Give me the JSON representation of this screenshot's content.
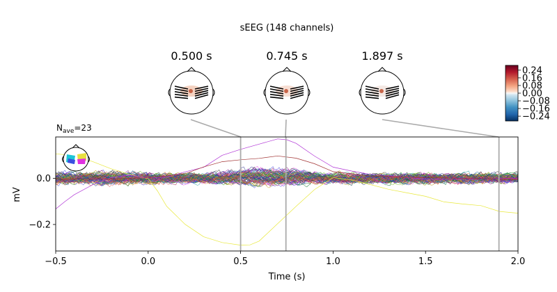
{
  "chart_data": {
    "type": "line",
    "title": "sEEG (148 channels)",
    "nave_label": "N",
    "nave_sub": "ave",
    "nave_value": "=23",
    "xlabel": "Time (s)",
    "ylabel": "mV",
    "xlim": [
      -0.5,
      2.0
    ],
    "ylim": [
      -0.315,
      0.18
    ],
    "xticks": [
      -0.5,
      0.0,
      0.5,
      1.0,
      1.5,
      2.0
    ],
    "xtick_labels": [
      "−0.5",
      "0.0",
      "0.5",
      "1.0",
      "1.5",
      "2.0"
    ],
    "yticks": [
      0.0,
      -0.2
    ],
    "ytick_labels": [
      "0.0",
      "−0.2"
    ],
    "topomap_times": [
      0.5,
      0.745,
      1.897
    ],
    "topomap_labels": [
      "0.500 s",
      "0.745 s",
      "1.897 s"
    ],
    "colorbar_ticks": [
      0.24,
      0.16,
      0.08,
      0.0,
      -0.08,
      -0.16,
      -0.24
    ],
    "colorbar_labels": [
      "0.24",
      "0.16",
      "0.08",
      "0.00",
      "−0.08",
      "−0.16",
      "−0.24"
    ],
    "colorbar_range": [
      -0.29,
      0.29
    ],
    "channel_count": 148,
    "highlight_series": [
      {
        "name": "yellow channel",
        "color": "#e8e83a",
        "x": [
          -0.5,
          -0.4,
          -0.3,
          -0.2,
          -0.1,
          0.0,
          0.05,
          0.1,
          0.2,
          0.3,
          0.4,
          0.5,
          0.55,
          0.6,
          0.7,
          0.8,
          0.9,
          1.0,
          1.1,
          1.2,
          1.3,
          1.4,
          1.5,
          1.6,
          1.7,
          1.8,
          1.9,
          2.0
        ],
        "y": [
          0.11,
          0.1,
          0.07,
          0.04,
          0.02,
          0.0,
          -0.05,
          -0.12,
          -0.2,
          -0.25,
          -0.28,
          -0.29,
          -0.285,
          -0.27,
          -0.2,
          -0.12,
          -0.05,
          0.0,
          -0.01,
          -0.03,
          -0.05,
          -0.06,
          -0.08,
          -0.1,
          -0.11,
          -0.12,
          -0.14,
          -0.15
        ]
      },
      {
        "name": "violet channel",
        "color": "#b033d6",
        "x": [
          -0.5,
          -0.45,
          -0.4,
          -0.3,
          -0.2,
          -0.1,
          0.0,
          0.1,
          0.2,
          0.3,
          0.4,
          0.5,
          0.6,
          0.7,
          0.75,
          0.8,
          0.9,
          1.0,
          1.1,
          1.2,
          1.3,
          1.5,
          1.7,
          2.0
        ],
        "y": [
          -0.13,
          -0.1,
          -0.07,
          -0.03,
          0.0,
          0.01,
          0.0,
          0.01,
          0.03,
          0.05,
          0.1,
          0.13,
          0.15,
          0.17,
          0.165,
          0.15,
          0.1,
          0.05,
          0.03,
          0.02,
          0.01,
          0.0,
          0.0,
          0.0
        ]
      },
      {
        "name": "dark red channel",
        "color": "#a03030",
        "x": [
          -0.5,
          -0.2,
          0.0,
          0.2,
          0.3,
          0.4,
          0.5,
          0.6,
          0.7,
          0.8,
          0.9,
          1.0,
          1.2,
          1.5,
          2.0
        ],
        "y": [
          0.0,
          0.0,
          0.0,
          0.02,
          0.05,
          0.07,
          0.08,
          0.09,
          0.1,
          0.09,
          0.06,
          0.03,
          0.01,
          0.0,
          0.0
        ]
      }
    ]
  }
}
